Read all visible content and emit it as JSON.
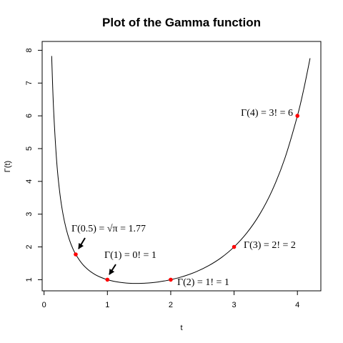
{
  "chart_data": {
    "type": "line",
    "title": "Plot of the Gamma function",
    "xlabel": "t",
    "ylabel": "Γ(t)",
    "xlim": [
      -0.03,
      4.37
    ],
    "ylim": [
      0.66,
      8.27
    ],
    "x_ticks": [
      0,
      1,
      2,
      3,
      4
    ],
    "y_ticks": [
      1,
      2,
      3,
      4,
      5,
      6,
      7,
      8
    ],
    "grid": false,
    "legend": "none",
    "series": [
      {
        "x": [
          0.12,
          0.15,
          0.2,
          0.25,
          0.3,
          0.35,
          0.4,
          0.45,
          0.5,
          0.6,
          0.7,
          0.8,
          0.9,
          1.0,
          1.1,
          1.2,
          1.3,
          1.4,
          1.4616,
          1.5,
          1.6,
          1.7,
          1.8,
          1.9,
          2.0,
          2.2,
          2.4,
          2.6,
          2.8,
          3.0,
          3.2,
          3.4,
          3.6,
          3.8,
          4.0,
          4.1,
          4.2
        ],
        "y": [
          7.825,
          6.22,
          4.591,
          3.625,
          2.992,
          2.546,
          2.218,
          1.968,
          1.772,
          1.489,
          1.298,
          1.164,
          1.069,
          1.0,
          0.951,
          0.918,
          0.897,
          0.887,
          0.886,
          0.886,
          0.894,
          0.909,
          0.931,
          0.962,
          1.0,
          1.102,
          1.242,
          1.43,
          1.676,
          2.0,
          2.424,
          2.981,
          3.717,
          4.694,
          6.0,
          6.813,
          7.757
        ]
      }
    ],
    "highlight_points": [
      {
        "x": 0.5,
        "y": 1.772
      },
      {
        "x": 1,
        "y": 1
      },
      {
        "x": 2,
        "y": 1
      },
      {
        "x": 3,
        "y": 2
      },
      {
        "x": 4,
        "y": 6
      }
    ],
    "point_color": "#ff0000",
    "annotations": [
      {
        "text": "Γ(0.5) = √π = 1.77",
        "x": 0.5,
        "y": 1.772,
        "arrow": true
      },
      {
        "text": "Γ(1) = 0! = 1",
        "x": 1,
        "y": 1,
        "arrow": true
      },
      {
        "text": "Γ(2) = 1! = 1",
        "x": 2,
        "y": 1,
        "arrow": false
      },
      {
        "text": "Γ(3) = 2! = 2",
        "x": 3,
        "y": 2,
        "arrow": false
      },
      {
        "text": "Γ(4) = 3! = 6",
        "x": 4,
        "y": 6,
        "arrow": false
      }
    ]
  }
}
